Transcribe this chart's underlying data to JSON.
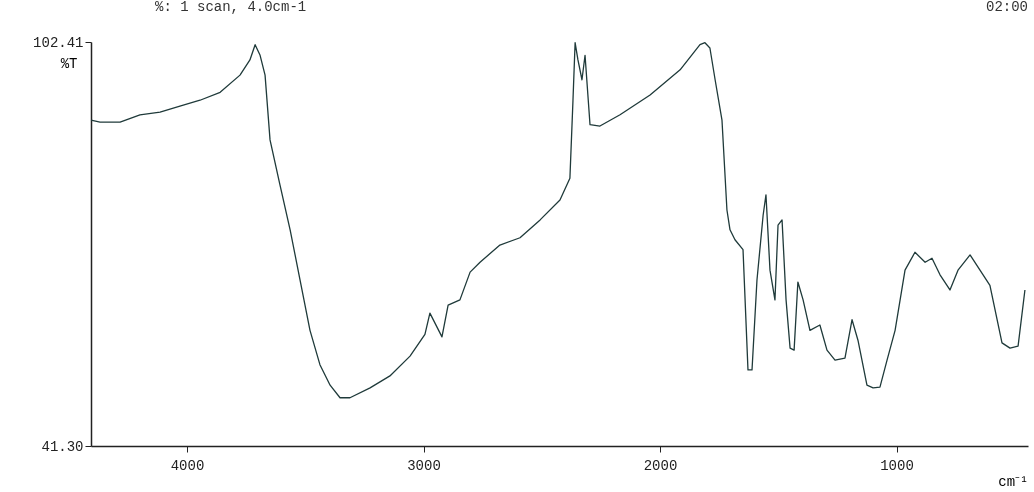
{
  "chart_data": {
    "type": "line",
    "title": "%: 1 scan, 4.0cm-1",
    "ylabel": "%T",
    "xlabel": "cm⁻¹",
    "annotations": [
      "02:00"
    ],
    "xlim": [
      4406,
      444
    ],
    "ylim": [
      41.3,
      102.41
    ],
    "xticks": [
      4000,
      3000,
      2000,
      1000
    ],
    "yticks": [
      {
        "value": 41.3,
        "label": "41.30"
      },
      102.41
    ],
    "grid": false,
    "marker": "none",
    "line_style": "solid",
    "series": [
      {
        "color": "#1f3a3a",
        "x": [
          4406,
          4368,
          4283,
          4199,
          4114,
          4030,
          3945,
          3860,
          3776,
          3734,
          3712,
          3691,
          3670,
          3649,
          3607,
          3564,
          3522,
          3480,
          3438,
          3395,
          3353,
          3311,
          3226,
          3142,
          3057,
          2994,
          2973,
          2922,
          2896,
          2846,
          2803,
          2761,
          2677,
          2592,
          2507,
          2423,
          2381,
          2368,
          2359,
          2347,
          2330,
          2317,
          2296,
          2254,
          2169,
          2042,
          1915,
          1831,
          1810,
          1789,
          1767,
          1738,
          1717,
          1704,
          1683,
          1649,
          1628,
          1611,
          1590,
          1564,
          1552,
          1535,
          1514,
          1501,
          1484,
          1467,
          1450,
          1433,
          1417,
          1395,
          1366,
          1324,
          1294,
          1260,
          1218,
          1188,
          1163,
          1125,
          1099,
          1070,
          1040,
          1006,
          964,
          922,
          879,
          850,
          816,
          774,
          740,
          689,
          647,
          605,
          554,
          520,
          486,
          457
        ],
        "values": [
          90.6,
          90.3,
          90.3,
          91.4,
          91.8,
          92.7,
          93.6,
          94.8,
          97.4,
          99.7,
          102.0,
          100.4,
          97.4,
          87.6,
          80.8,
          74.0,
          66.4,
          58.8,
          53.6,
          50.5,
          48.6,
          48.6,
          50.1,
          51.9,
          54.9,
          58.2,
          61.4,
          57.8,
          62.6,
          63.4,
          67.6,
          69.1,
          71.7,
          72.8,
          75.5,
          78.5,
          81.8,
          93.6,
          102.3,
          99.7,
          96.7,
          100.4,
          89.9,
          89.7,
          91.4,
          94.4,
          98.2,
          102.0,
          102.3,
          101.5,
          96.7,
          90.6,
          77.0,
          74.0,
          72.5,
          71.0,
          52.8,
          52.8,
          66.4,
          76.2,
          79.3,
          67.9,
          63.4,
          74.7,
          75.5,
          63.4,
          56.1,
          55.8,
          66.1,
          63.4,
          58.8,
          59.6,
          55.8,
          54.3,
          54.6,
          60.4,
          57.3,
          50.5,
          50.1,
          50.2,
          54.3,
          58.8,
          67.9,
          70.6,
          69.1,
          69.7,
          67.2,
          64.9,
          67.9,
          70.2,
          67.9,
          65.6,
          56.9,
          56.1,
          56.4,
          64.9
        ]
      }
    ]
  }
}
